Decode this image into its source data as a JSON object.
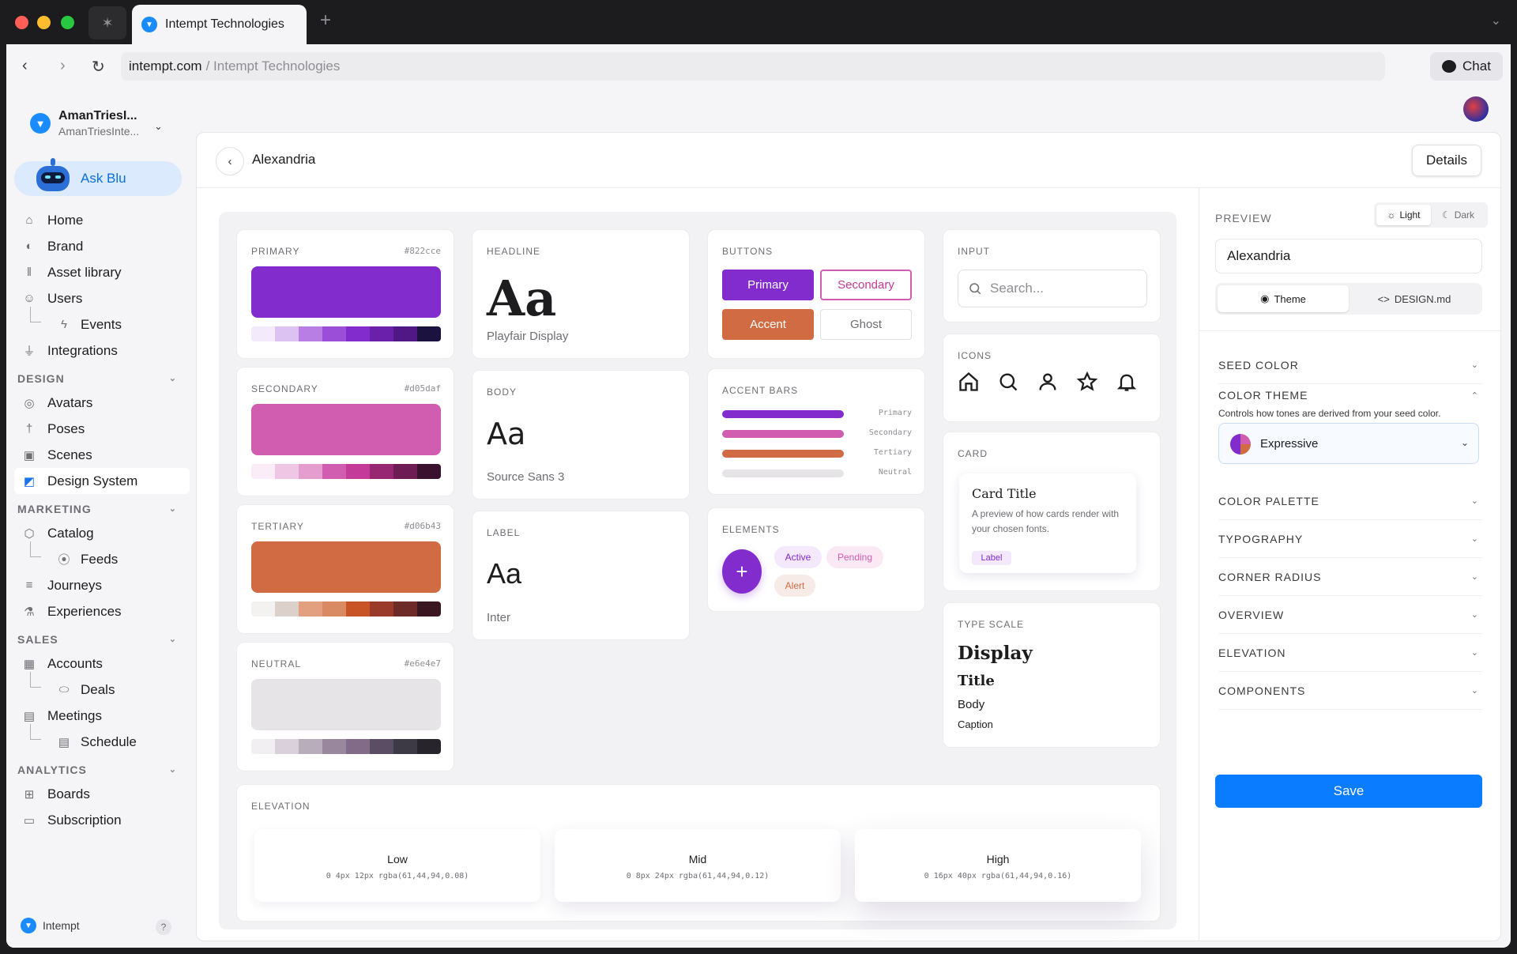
{
  "browser": {
    "tab_title": "Intempt Technologies",
    "url_host": "intempt.com",
    "url_rest": "/ Intempt Technologies",
    "chat_label": "Chat"
  },
  "sidebar": {
    "org_name": "AmanTriesI...",
    "org_sub": "AmanTriesInte...",
    "ask_blu": "Ask Blu",
    "items": [
      {
        "label": "Home",
        "icon": "home-icon"
      },
      {
        "label": "Brand",
        "icon": "palette-icon"
      },
      {
        "label": "Asset library",
        "icon": "library-icon"
      },
      {
        "label": "Users",
        "icon": "users-icon"
      },
      {
        "label": "Events",
        "icon": "bolt-icon"
      },
      {
        "label": "Integrations",
        "icon": "plug-icon"
      }
    ],
    "sections": {
      "design": "DESIGN",
      "marketing": "MARKETING",
      "sales": "SALES",
      "analytics": "ANALYTICS"
    },
    "design_items": [
      "Avatars",
      "Poses",
      "Scenes",
      "Design System"
    ],
    "marketing_items": [
      "Catalog",
      "Feeds",
      "Journeys",
      "Experiences"
    ],
    "sales_items": [
      "Accounts",
      "Deals",
      "Meetings",
      "Schedule"
    ],
    "analytics_items": [
      "Boards",
      "Subscription"
    ],
    "footer": "Intempt",
    "help": "?"
  },
  "header": {
    "title": "Alexandria",
    "details": "Details"
  },
  "palette": [
    {
      "title": "PRIMARY",
      "hex": "#822cce",
      "color": "#822cce",
      "ramp": [
        "#f3ebfb",
        "#dcc1f3",
        "#b97ee4",
        "#9b4fd9",
        "#822cce",
        "#6a20ab",
        "#4f1884",
        "#1c1240"
      ]
    },
    {
      "title": "SECONDARY",
      "hex": "#d05daf",
      "color": "#d05daf",
      "ramp": [
        "#fbedf7",
        "#efc6e4",
        "#e59dd0",
        "#d05daf",
        "#c43a98",
        "#972673",
        "#6d1d53",
        "#3a1230"
      ]
    },
    {
      "title": "TERTIARY",
      "hex": "#d06b43",
      "color": "#d06b43",
      "ramp": [
        "#f4f2f1",
        "#dcd0cb",
        "#e2a080",
        "#d98a63",
        "#c85426",
        "#9a3b2a",
        "#6e2a26",
        "#3a1620"
      ]
    },
    {
      "title": "NEUTRAL",
      "hex": "#e6e4e7",
      "color": "#e6e4e7",
      "ramp": [
        "#f1eff2",
        "#d9d0dc",
        "#b7adbb",
        "#99879d",
        "#826a89",
        "#5b4d63",
        "#3e3a45",
        "#27252b"
      ]
    }
  ],
  "typography": [
    {
      "title": "HEADLINE",
      "sample": "Aa",
      "font": "Playfair Display"
    },
    {
      "title": "BODY",
      "sample": "Aa",
      "font": "Source Sans 3"
    },
    {
      "title": "LABEL",
      "sample": "Aa",
      "font": "Inter"
    }
  ],
  "buttons": {
    "title": "BUTTONS",
    "primary": "Primary",
    "secondary": "Secondary",
    "accent": "Accent",
    "ghost": "Ghost"
  },
  "accent_bars": {
    "title": "ACCENT BARS",
    "bars": [
      {
        "label": "Primary",
        "color": "#822cce"
      },
      {
        "label": "Secondary",
        "color": "#d05daf"
      },
      {
        "label": "Tertiary",
        "color": "#d06b43"
      },
      {
        "label": "Neutral",
        "color": "#e6e4e7"
      }
    ]
  },
  "elements": {
    "title": "ELEMENTS",
    "fab": "+",
    "active": "Active",
    "pending": "Pending",
    "alert": "Alert"
  },
  "input": {
    "title": "INPUT",
    "placeholder": "Search..."
  },
  "icons": {
    "title": "ICONS",
    "list": [
      "home-icon",
      "search-icon",
      "user-icon",
      "star-icon",
      "bell-icon"
    ]
  },
  "card": {
    "title": "CARD",
    "card_title": "Card Title",
    "card_body": "A preview of how cards render with your chosen fonts.",
    "card_label": "Label"
  },
  "type_scale": {
    "title": "TYPE SCALE",
    "display": "Display",
    "title_text": "Title",
    "body": "Body",
    "caption": "Caption"
  },
  "elevation": {
    "title": "ELEVATION",
    "levels": [
      {
        "name": "Low",
        "value": "0 4px 12px rgba(61,44,94,0.08)"
      },
      {
        "name": "Mid",
        "value": "0 8px 24px rgba(61,44,94,0.12)"
      },
      {
        "name": "High",
        "value": "0 16px 40px rgba(61,44,94,0.16)"
      }
    ]
  },
  "right_panel": {
    "preview_label": "PREVIEW",
    "light": "Light",
    "dark": "Dark",
    "name_value": "Alexandria",
    "tab_theme": "Theme",
    "tab_design": "DESIGN.md",
    "accordions": {
      "seed_color": "SEED COLOR",
      "color_theme": "COLOR THEME",
      "color_palette": "COLOR PALETTE",
      "typography": "TYPOGRAPHY",
      "corner_radius": "CORNER RADIUS",
      "overview": "OVERVIEW",
      "elevation": "ELEVATION",
      "components": "COMPONENTS"
    },
    "color_theme_desc": "Controls how tones are derived from your seed color.",
    "color_theme_value": "Expressive",
    "save": "Save"
  }
}
